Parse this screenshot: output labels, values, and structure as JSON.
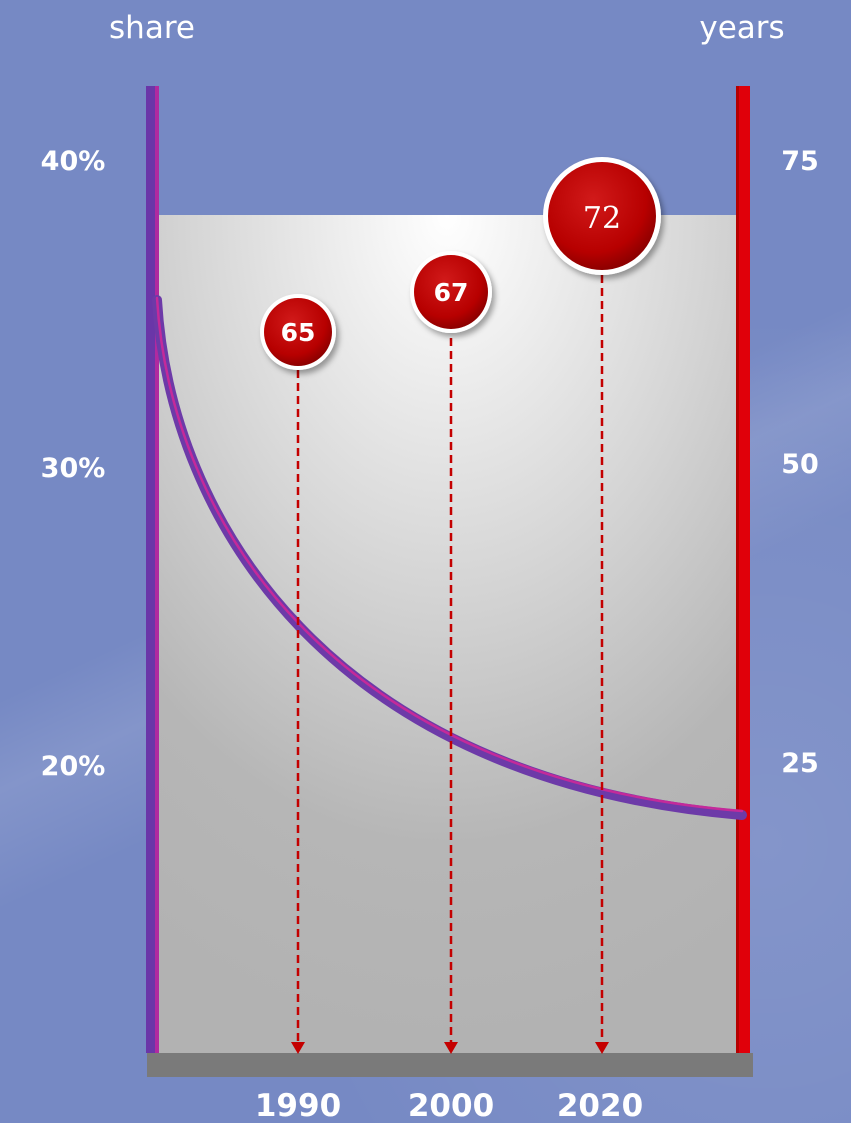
{
  "chart_data": {
    "type": "line",
    "left_axis": {
      "label": "share",
      "ticks": [
        "40%",
        "30%",
        "20%"
      ],
      "tick_values": [
        40,
        30,
        20
      ],
      "range": [
        10,
        40
      ],
      "color": "#7b35b5"
    },
    "right_axis": {
      "label": "years",
      "ticks": [
        "75",
        "50",
        "25"
      ],
      "tick_values": [
        75,
        50,
        25
      ],
      "range": [
        0,
        75
      ],
      "color": "#e0000a"
    },
    "x_categories": [
      "1990",
      "2000",
      "2020"
    ],
    "series": [
      {
        "axis": "left",
        "curve": "decaying",
        "start_value": 35,
        "end_value": 18.9,
        "color": "#6d3aa8"
      },
      {
        "axis": "right",
        "points": [
          {
            "x": "1990",
            "value": 65,
            "label": "65"
          },
          {
            "x": "2000",
            "value": 67,
            "label": "67"
          },
          {
            "x": "2020",
            "value": 72,
            "label": "72"
          }
        ],
        "color": "#c40000"
      }
    ],
    "grid": false
  }
}
